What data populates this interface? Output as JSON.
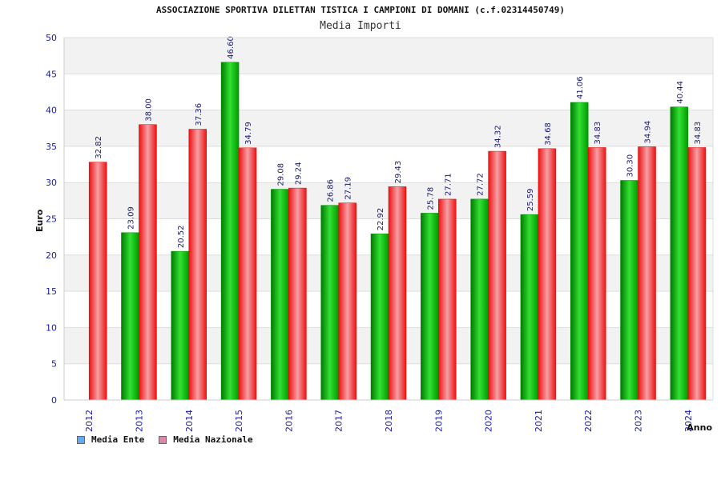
{
  "header": {
    "title": "ASSOCIAZIONE SPORTIVA DILETTAN TISTICA I CAMPIONI DI DOMANI (c.f.02314450749)",
    "subtitle": "Media Importi"
  },
  "legend": {
    "items": [
      {
        "label": "Media Ente",
        "color": "#66aaee"
      },
      {
        "label": "Media Nazionale",
        "color": "#dd88aa"
      }
    ]
  },
  "chart_data": {
    "type": "bar",
    "title": "Media Importi",
    "xlabel": "Anno",
    "ylabel": "Euro",
    "ylim": [
      0,
      50
    ],
    "yticks": [
      0,
      5,
      10,
      15,
      20,
      25,
      30,
      35,
      40,
      45,
      50
    ],
    "categories": [
      "2012",
      "2013",
      "2014",
      "2015",
      "2016",
      "2017",
      "2018",
      "2019",
      "2020",
      "2021",
      "2022",
      "2023",
      "2024"
    ],
    "series": [
      {
        "name": "Media Ente",
        "color": "#00b000",
        "values": [
          null,
          23.09,
          20.52,
          46.6,
          29.08,
          26.86,
          22.92,
          25.78,
          27.72,
          25.59,
          41.06,
          30.3,
          40.44
        ],
        "labels": [
          "",
          "23.09",
          "20.52",
          "46.60",
          "29.08",
          "26.86",
          "22.92",
          "25.78",
          "27.72",
          "25.59",
          "41.06",
          "30.30",
          "40.44"
        ]
      },
      {
        "name": "Media Nazionale",
        "color": "#ee0000",
        "values": [
          32.82,
          38.0,
          37.36,
          34.79,
          29.24,
          27.19,
          29.43,
          27.71,
          34.32,
          34.68,
          34.83,
          34.94,
          34.83
        ],
        "labels": [
          "32.82",
          "38.00",
          "37.36",
          "34.79",
          "29.24",
          "27.19",
          "29.43",
          "27.71",
          "34.32",
          "34.68",
          "34.83",
          "34.94",
          "34.83"
        ]
      }
    ],
    "grid": true,
    "legend_position": "bottom-left"
  }
}
